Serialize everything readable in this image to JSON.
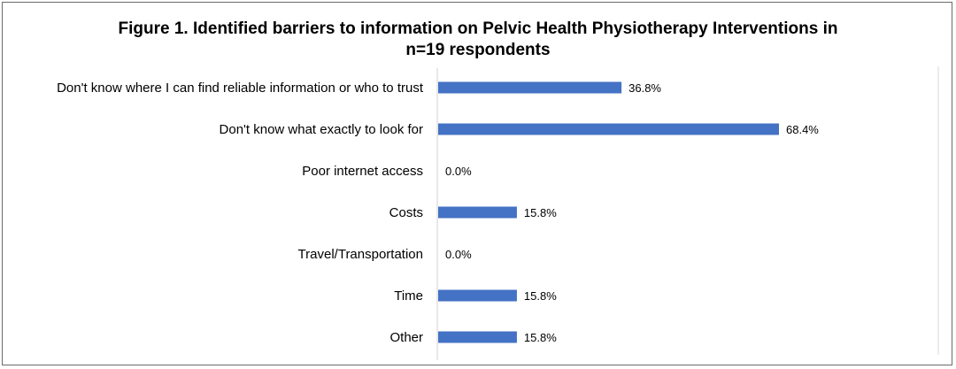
{
  "chart_data": {
    "type": "bar",
    "orientation": "horizontal",
    "title": "Figure 1. Identified barriers to information on Pelvic Health Physiotherapy Interventions in n=19 respondents",
    "title_lines": [
      "Figure 1. Identified barriers to information on Pelvic Health Physiotherapy Interventions in",
      "n=19 respondents"
    ],
    "categories": [
      "Don't know where I can find reliable information or who to trust",
      "Don't know what exactly to look for",
      "Poor internet access",
      "Costs",
      "Travel/Transportation",
      "Time",
      "Other"
    ],
    "values": [
      36.8,
      68.4,
      0.0,
      15.8,
      0.0,
      15.8,
      15.8
    ],
    "value_labels": [
      "36.8%",
      "68.4%",
      "0.0%",
      "15.8%",
      "0.0%",
      "15.8%",
      "15.8%"
    ],
    "xlim": [
      0,
      100
    ],
    "bar_color": "#4472C4",
    "grid": false,
    "legend": "none",
    "xlabel": "",
    "ylabel": ""
  }
}
